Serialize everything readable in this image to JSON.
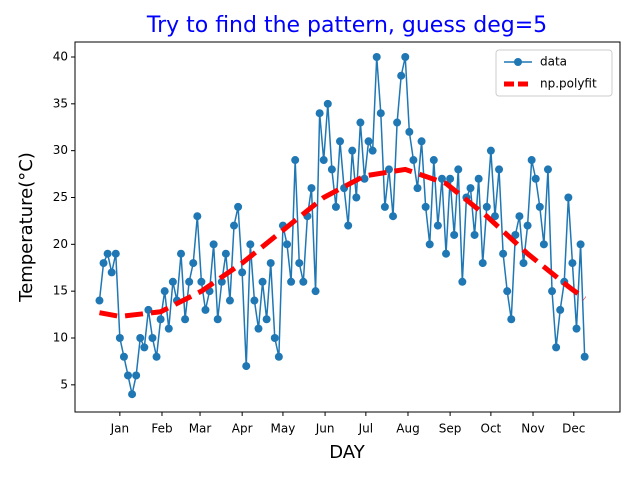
{
  "chart_data": {
    "type": "line",
    "title": "Try to find the pattern, guess deg=5",
    "x_label": "DAY",
    "y_label": "Temperature(°C)",
    "x": [
      -15,
      -12,
      -9,
      -6,
      -3,
      0,
      3,
      6,
      9,
      12,
      15,
      18,
      21,
      24,
      27,
      30,
      33,
      36,
      39,
      42,
      45,
      48,
      51,
      54,
      57,
      60,
      63,
      66,
      69,
      72,
      75,
      78,
      81,
      84,
      87,
      90,
      93,
      96,
      99,
      102,
      105,
      108,
      111,
      114,
      117,
      120,
      123,
      126,
      129,
      132,
      135,
      138,
      141,
      144,
      147,
      150,
      153,
      156,
      159,
      162,
      165,
      168,
      171,
      174,
      177,
      180,
      183,
      186,
      189,
      192,
      195,
      198,
      201,
      204,
      207,
      210,
      213,
      216,
      219,
      222,
      225,
      228,
      231,
      234,
      237,
      240,
      243,
      246,
      249,
      252,
      255,
      258,
      261,
      264,
      267,
      270,
      273,
      276,
      279,
      282,
      285,
      288,
      291,
      294,
      297,
      300,
      303,
      306,
      309,
      312,
      315,
      318,
      321,
      324,
      327,
      330,
      333,
      336,
      339,
      342
    ],
    "series": [
      {
        "name": "data",
        "color": "#1f77b4",
        "marker": "circle",
        "values": [
          14,
          18,
          19,
          17,
          19,
          10,
          8,
          6,
          4,
          6,
          10,
          9,
          13,
          10,
          8,
          12,
          15,
          11,
          16,
          14,
          19,
          12,
          16,
          18,
          23,
          16,
          13,
          15,
          20,
          12,
          16,
          19,
          14,
          22,
          24,
          17,
          7,
          20,
          14,
          11,
          16,
          12,
          18,
          10,
          8,
          22,
          20,
          16,
          29,
          18,
          16,
          23,
          26,
          15,
          34,
          29,
          35,
          28,
          24,
          31,
          26,
          22,
          30,
          25,
          33,
          27,
          31,
          30,
          40,
          34,
          24,
          28,
          23,
          33,
          38,
          40,
          32,
          29,
          26,
          31,
          24,
          20,
          29,
          22,
          27,
          19,
          27,
          21,
          28,
          16,
          25,
          26,
          21,
          27,
          18,
          24,
          30,
          23,
          28,
          19,
          15,
          12,
          21,
          23,
          18,
          22,
          29,
          27,
          24,
          20,
          28,
          15,
          9,
          13,
          16,
          25,
          18,
          11,
          20,
          8
        ]
      },
      {
        "name": "np.polyfit",
        "color": "#ff0000",
        "dashed": true,
        "x": [
          -15,
          0,
          30,
          60,
          90,
          120,
          150,
          180,
          210,
          240,
          270,
          300,
          330,
          342
        ],
        "values": [
          12.7,
          12.3,
          12.8,
          15,
          18,
          21.5,
          25,
          27.3,
          28,
          26.5,
          23,
          19,
          15.5,
          14.2
        ]
      }
    ],
    "xlim": [
      -33,
      368
    ],
    "xticks": [
      {
        "value": 0,
        "label": "Jan"
      },
      {
        "value": 31,
        "label": "Feb"
      },
      {
        "value": 59,
        "label": "Mar"
      },
      {
        "value": 90,
        "label": "Apr"
      },
      {
        "value": 120,
        "label": "May"
      },
      {
        "value": 151,
        "label": "Jun"
      },
      {
        "value": 181,
        "label": "Jul"
      },
      {
        "value": 212,
        "label": "Aug"
      },
      {
        "value": 243,
        "label": "Sep"
      },
      {
        "value": 273,
        "label": "Oct"
      },
      {
        "value": 304,
        "label": "Nov"
      },
      {
        "value": 334,
        "label": "Dec"
      }
    ],
    "ylim": [
      2.1,
      41.6
    ],
    "yticks": [
      5,
      10,
      15,
      20,
      25,
      30,
      35,
      40
    ],
    "grid": false,
    "legend": "upper right"
  }
}
